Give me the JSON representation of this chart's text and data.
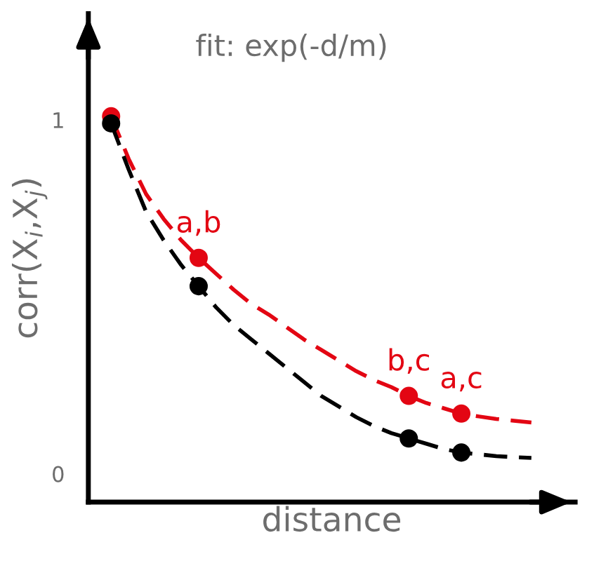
{
  "chart_data": {
    "type": "line",
    "title": "fit: exp(-d/m)",
    "xlabel": "distance",
    "ylabel": "corr(X$_{i}$,X$_{j}$)",
    "categories": [
      null,
      null,
      null,
      null,
      null,
      null,
      null,
      null,
      null,
      null,
      null,
      null,
      null,
      null,
      null,
      null,
      null,
      null,
      null,
      null,
      null,
      null,
      null,
      null,
      null
    ],
    "ylim": [
      -0.08,
      1.3
    ],
    "yticks": [
      0,
      1
    ],
    "tick_labels": "y",
    "grid": false,
    "legend": false,
    "series": [
      {
        "line_style": "dashed",
        "marker": "none",
        "color": "#e30613",
        "values": [
          1.01,
          0.89,
          0.79,
          0.72,
          0.66,
          0.61,
          0.565,
          0.52,
          0.48,
          0.45,
          0.415,
          0.38,
          0.35,
          0.32,
          0.29,
          0.265,
          0.245,
          0.22,
          0.2,
          0.185,
          0.17,
          0.162,
          0.155,
          0.15,
          0.145
        ]
      },
      {
        "line_style": "dashed",
        "marker": "none",
        "color": "#000000",
        "values": [
          0.99,
          0.86,
          0.74,
          0.66,
          0.59,
          0.53,
          0.47,
          0.42,
          0.38,
          0.34,
          0.3,
          0.26,
          0.22,
          0.19,
          0.16,
          0.135,
          0.115,
          0.1,
          0.085,
          0.07,
          0.06,
          0.055,
          0.05,
          0.047,
          0.045
        ]
      },
      {
        "type": "scatter",
        "marker": "circle",
        "color": "#e30613",
        "values": [
          1.01,
          null,
          null,
          null,
          null,
          0.61,
          null,
          null,
          null,
          null,
          null,
          null,
          null,
          null,
          null,
          null,
          null,
          0.22,
          null,
          null,
          0.17,
          null,
          null,
          null,
          null
        ],
        "value_labels": [
          null,
          null,
          null,
          null,
          null,
          "a,b",
          null,
          null,
          null,
          null,
          null,
          null,
          null,
          null,
          null,
          null,
          null,
          "b,c",
          null,
          null,
          "a,c",
          null,
          null,
          null,
          null
        ]
      },
      {
        "type": "scatter",
        "marker": "circle",
        "color": "#000000",
        "values": [
          0.99,
          null,
          null,
          null,
          null,
          0.53,
          null,
          null,
          null,
          null,
          null,
          null,
          null,
          null,
          null,
          null,
          null,
          0.1,
          null,
          null,
          0.06,
          null,
          null,
          null,
          null
        ]
      }
    ]
  }
}
